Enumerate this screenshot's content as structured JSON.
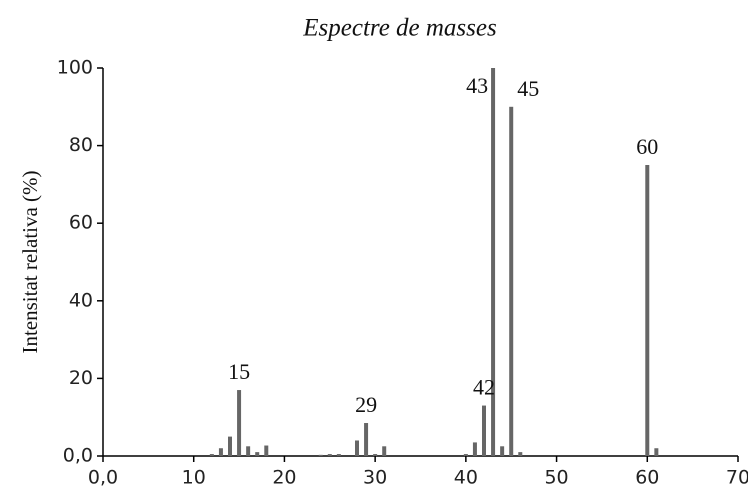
{
  "chart_data": {
    "type": "stick",
    "title": "Espectre de masses",
    "y_label": "Intensitat relativa (%)",
    "x": [
      12,
      13,
      14,
      15,
      16,
      17,
      18,
      24,
      25,
      26,
      28,
      29,
      30,
      31,
      40,
      41,
      42,
      43,
      44,
      45,
      46,
      60,
      61
    ],
    "values": [
      0.5,
      2,
      5,
      17,
      2.5,
      1,
      2.7,
      0.3,
      0.5,
      0.5,
      4,
      8.5,
      0.5,
      2.5,
      0.5,
      3.5,
      13,
      100,
      2.5,
      90,
      1,
      75,
      2
    ],
    "labeled_x": [
      15,
      29,
      42,
      43,
      45,
      60
    ],
    "color": "#666666",
    "xlim": [
      0,
      70
    ],
    "xticks": [
      {
        "value": 0,
        "label": "0,0"
      },
      10,
      20,
      30,
      40,
      50,
      60,
      70
    ],
    "ylim": [
      0,
      100
    ],
    "yticks": [
      {
        "value": 0,
        "label": "0,0"
      },
      20,
      40,
      60,
      80,
      100
    ]
  }
}
